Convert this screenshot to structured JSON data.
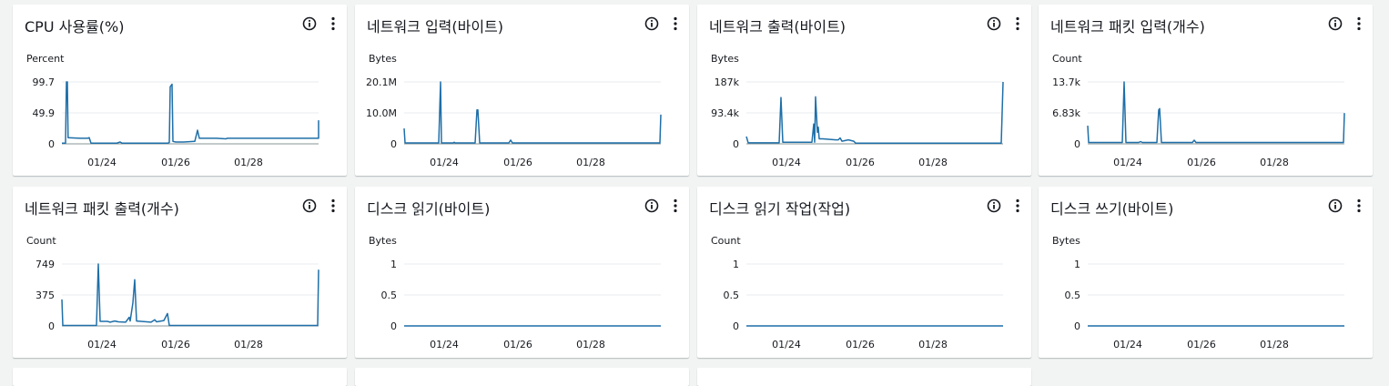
{
  "colors": {
    "page_bg": "#f2f3f3",
    "card_bg": "#ffffff",
    "line": "#1f6fa8",
    "grid": "#e9ebed",
    "text": "#16191f"
  },
  "icons": {
    "info": "info-circle-icon",
    "menu": "more-vertical-icon"
  },
  "widgets": [
    {
      "title": "CPU 사용률(%)",
      "unit": "Percent",
      "chart_data": {
        "type": "line",
        "x_ticks": [
          "01/24",
          "01/26",
          "01/28"
        ],
        "y_ticks": [
          "99.7",
          "49.9",
          "0"
        ],
        "ylim": [
          0,
          99.7
        ],
        "series": [
          {
            "values": [
              [
                0,
                1
              ],
              [
                4,
                1
              ],
              [
                5,
                99.7
              ],
              [
                6,
                99.7
              ],
              [
                6.8,
                10
              ],
              [
                20,
                9
              ],
              [
                28,
                9
              ],
              [
                30,
                10
              ],
              [
                32,
                1
              ],
              [
                50,
                1
              ],
              [
                60,
                1
              ],
              [
                64,
                3
              ],
              [
                66,
                1
              ],
              [
                116,
                1
              ],
              [
                118,
                2
              ],
              [
                119,
                92
              ],
              [
                121,
                96
              ],
              [
                122,
                4
              ],
              [
                125,
                3
              ],
              [
                134,
                3
              ],
              [
                146,
                4
              ],
              [
                149,
                22
              ],
              [
                151,
                9
              ],
              [
                170,
                9
              ],
              [
                180,
                8
              ],
              [
                182,
                9
              ],
              [
                282,
                9
              ],
              [
                282,
                38
              ]
            ]
          }
        ]
      }
    },
    {
      "title": "네트워크 입력(바이트)",
      "unit": "Bytes",
      "chart_data": {
        "type": "line",
        "x_ticks": [
          "01/24",
          "01/26",
          "01/28"
        ],
        "y_ticks": [
          "20.1M",
          "10.0M",
          "0"
        ],
        "ylim": [
          0,
          20.1
        ],
        "series": [
          {
            "values": [
              [
                0,
                5
              ],
              [
                1,
                0.3
              ],
              [
                38,
                0.3
              ],
              [
                40,
                20.1
              ],
              [
                41,
                0.3
              ],
              [
                54,
                0.3
              ],
              [
                55,
                0.5
              ],
              [
                56,
                0.3
              ],
              [
                78,
                0.3
              ],
              [
                80,
                11
              ],
              [
                81,
                11
              ],
              [
                83,
                0.3
              ],
              [
                115,
                0.3
              ],
              [
                117,
                1.2
              ],
              [
                119,
                0.3
              ],
              [
                281,
                0.3
              ],
              [
                282,
                9.5
              ]
            ]
          }
        ]
      }
    },
    {
      "title": "네트워크 출력(바이트)",
      "unit": "Bytes",
      "chart_data": {
        "type": "line",
        "x_ticks": [
          "01/24",
          "01/26",
          "01/28"
        ],
        "y_ticks": [
          "187k",
          "93.4k",
          "0"
        ],
        "ylim": [
          0,
          187
        ],
        "series": [
          {
            "values": [
              [
                0,
                22
              ],
              [
                2,
                3
              ],
              [
                36,
                3
              ],
              [
                38,
                140
              ],
              [
                40,
                5
              ],
              [
                72,
                5
              ],
              [
                74,
                60
              ],
              [
                75,
                5
              ],
              [
                76,
                142
              ],
              [
                78,
                35
              ],
              [
                79,
                50
              ],
              [
                80,
                15
              ],
              [
                84,
                15
              ],
              [
                98,
                12
              ],
              [
                101,
                12
              ],
              [
                103,
                18
              ],
              [
                105,
                8
              ],
              [
                112,
                12
              ],
              [
                118,
                8
              ],
              [
                120,
                2
              ],
              [
                280,
                2
              ],
              [
                282,
                187
              ]
            ]
          }
        ]
      }
    },
    {
      "title": "네트워크 패킷 입력(개수)",
      "unit": "Count",
      "chart_data": {
        "type": "line",
        "x_ticks": [
          "01/24",
          "01/26",
          "01/28"
        ],
        "y_ticks": [
          "13.7k",
          "6.83k",
          "0"
        ],
        "ylim": [
          0,
          13.7
        ],
        "series": [
          {
            "values": [
              [
                0,
                4
              ],
              [
                1,
                0.3
              ],
              [
                38,
                0.3
              ],
              [
                40,
                13.7
              ],
              [
                42,
                0.3
              ],
              [
                56,
                0.3
              ],
              [
                58,
                0.5
              ],
              [
                60,
                0.3
              ],
              [
                76,
                0.3
              ],
              [
                78,
                7.5
              ],
              [
                79,
                7.8
              ],
              [
                81,
                0.3
              ],
              [
                115,
                0.3
              ],
              [
                117,
                0.8
              ],
              [
                119,
                0.3
              ],
              [
                281,
                0.3
              ],
              [
                282,
                6.8
              ]
            ]
          }
        ]
      }
    },
    {
      "title": "네트워크 패킷 출력(개수)",
      "unit": "Count",
      "chart_data": {
        "type": "line",
        "x_ticks": [
          "01/24",
          "01/26",
          "01/28"
        ],
        "y_ticks": [
          "749",
          "375",
          "0"
        ],
        "ylim": [
          0,
          749
        ],
        "series": [
          {
            "values": [
              [
                0,
                320
              ],
              [
                1,
                5
              ],
              [
                38,
                5
              ],
              [
                40,
                749
              ],
              [
                42,
                55
              ],
              [
                50,
                55
              ],
              [
                53,
                45
              ],
              [
                58,
                60
              ],
              [
                62,
                50
              ],
              [
                70,
                45
              ],
              [
                74,
                105
              ],
              [
                75,
                60
              ],
              [
                78,
                280
              ],
              [
                80,
                560
              ],
              [
                82,
                60
              ],
              [
                98,
                45
              ],
              [
                102,
                75
              ],
              [
                104,
                50
              ],
              [
                112,
                65
              ],
              [
                116,
                150
              ],
              [
                118,
                5
              ],
              [
                281,
                5
              ],
              [
                282,
                680
              ]
            ]
          }
        ]
      }
    },
    {
      "title": "디스크 읽기(바이트)",
      "unit": "Bytes",
      "chart_data": {
        "type": "line",
        "x_ticks": [
          "01/24",
          "01/26",
          "01/28"
        ],
        "y_ticks": [
          "1",
          "0.5",
          "0"
        ],
        "ylim": [
          0,
          1
        ],
        "series": [
          {
            "values": [
              [
                0,
                0
              ],
              [
                282,
                0
              ]
            ]
          }
        ]
      }
    },
    {
      "title": "디스크 읽기 작업(작업)",
      "unit": "Count",
      "chart_data": {
        "type": "line",
        "x_ticks": [
          "01/24",
          "01/26",
          "01/28"
        ],
        "y_ticks": [
          "1",
          "0.5",
          "0"
        ],
        "ylim": [
          0,
          1
        ],
        "series": [
          {
            "values": [
              [
                0,
                0
              ],
              [
                282,
                0
              ]
            ]
          }
        ]
      }
    },
    {
      "title": "디스크 쓰기(바이트)",
      "unit": "Bytes",
      "chart_data": {
        "type": "line",
        "x_ticks": [
          "01/24",
          "01/26",
          "01/28"
        ],
        "y_ticks": [
          "1",
          "0.5",
          "0"
        ],
        "ylim": [
          0,
          1
        ],
        "series": [
          {
            "values": [
              [
                0,
                0
              ],
              [
                282,
                0
              ]
            ]
          }
        ]
      }
    }
  ]
}
